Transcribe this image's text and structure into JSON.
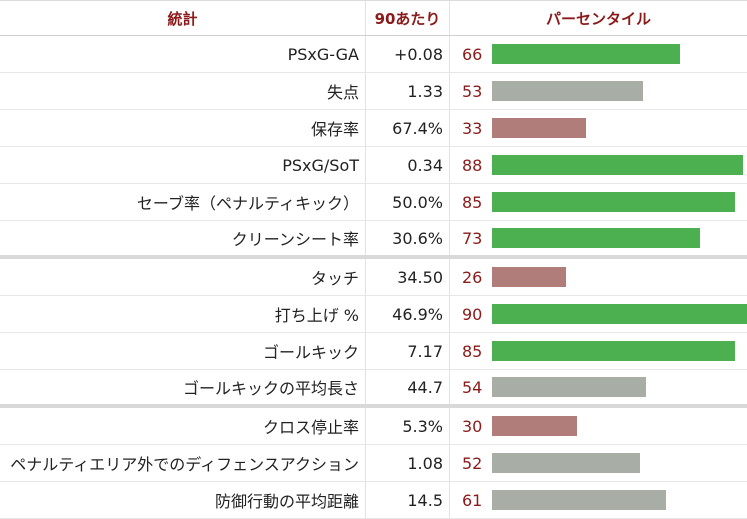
{
  "headers": {
    "stat": "統計",
    "per90": "90あたり",
    "percentile": "パーセンタイル"
  },
  "colors": {
    "high": "#4caf50",
    "mid": "#a8aea6",
    "low": "#b07d7b",
    "header_text": "#8b1a1a"
  },
  "rows": [
    {
      "label": "PSxG-GA",
      "per90": "+0.08",
      "percentile": "66",
      "level": "high"
    },
    {
      "label": "失点",
      "per90": "1.33",
      "percentile": "53",
      "level": "mid"
    },
    {
      "label": "保存率",
      "per90": "67.4%",
      "percentile": "33",
      "level": "low"
    },
    {
      "label": "PSxG/SoT",
      "per90": "0.34",
      "percentile": "88",
      "level": "high"
    },
    {
      "label": "セーブ率（ペナルティキック）",
      "per90": "50.0%",
      "percentile": "85",
      "level": "high"
    },
    {
      "label": "クリーンシート率",
      "per90": "30.6%",
      "percentile": "73",
      "level": "high"
    },
    {
      "label": "タッチ",
      "per90": "34.50",
      "percentile": "26",
      "level": "low"
    },
    {
      "label": "打ち上げ %",
      "per90": "46.9%",
      "percentile": "90",
      "level": "high"
    },
    {
      "label": "ゴールキック",
      "per90": "7.17",
      "percentile": "85",
      "level": "high"
    },
    {
      "label": "ゴールキックの平均長さ",
      "per90": "44.7",
      "percentile": "54",
      "level": "mid"
    },
    {
      "label": "クロス停止率",
      "per90": "5.3%",
      "percentile": "30",
      "level": "low"
    },
    {
      "label": "ペナルティエリア外でのディフェンスアクション",
      "per90": "1.08",
      "percentile": "52",
      "level": "mid"
    },
    {
      "label": "防御行動の平均距離",
      "per90": "14.5",
      "percentile": "61",
      "level": "mid"
    }
  ]
}
